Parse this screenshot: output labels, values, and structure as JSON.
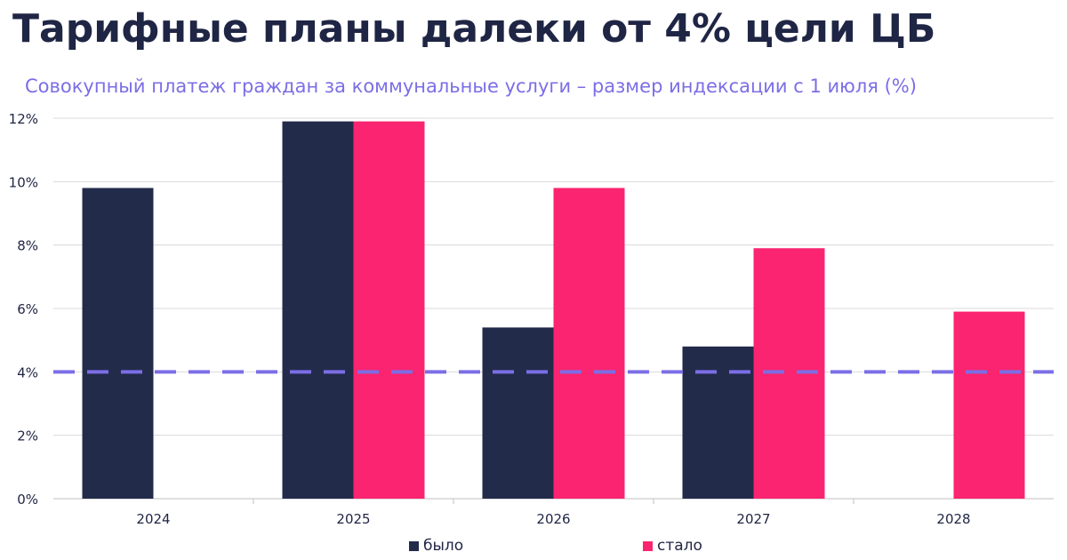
{
  "title": "Тарифные планы далеки от 4% цели ЦБ",
  "subtitle": "Совокупный платеж граждан за коммунальные услуги – размер индексации с 1 июля (%)",
  "colors": {
    "title": "#1f2544",
    "subtitle": "#7b6ee6",
    "bylo": "#232b4b",
    "stalo": "#fa2470",
    "target_line": "#7b6ee6",
    "grid": "#d9d9d9",
    "axis_text": "#1f2544"
  },
  "chart_data": {
    "type": "bar",
    "categories": [
      "2024",
      "2025",
      "2026",
      "2027",
      "2028"
    ],
    "series": [
      {
        "name": "было",
        "values": [
          9.8,
          11.9,
          5.4,
          4.8,
          null
        ]
      },
      {
        "name": "стало",
        "values": [
          null,
          11.9,
          9.8,
          7.9,
          5.9
        ]
      }
    ],
    "reference_line": {
      "value": 4,
      "style": "dashed"
    },
    "ylim": [
      0,
      12
    ],
    "yticks": [
      0,
      2,
      4,
      6,
      8,
      10,
      12
    ],
    "ytick_labels": [
      "0%",
      "2%",
      "4%",
      "6%",
      "8%",
      "10%",
      "12%"
    ],
    "xlabel": "",
    "ylabel": "",
    "grid": true,
    "legend": "bottom"
  }
}
